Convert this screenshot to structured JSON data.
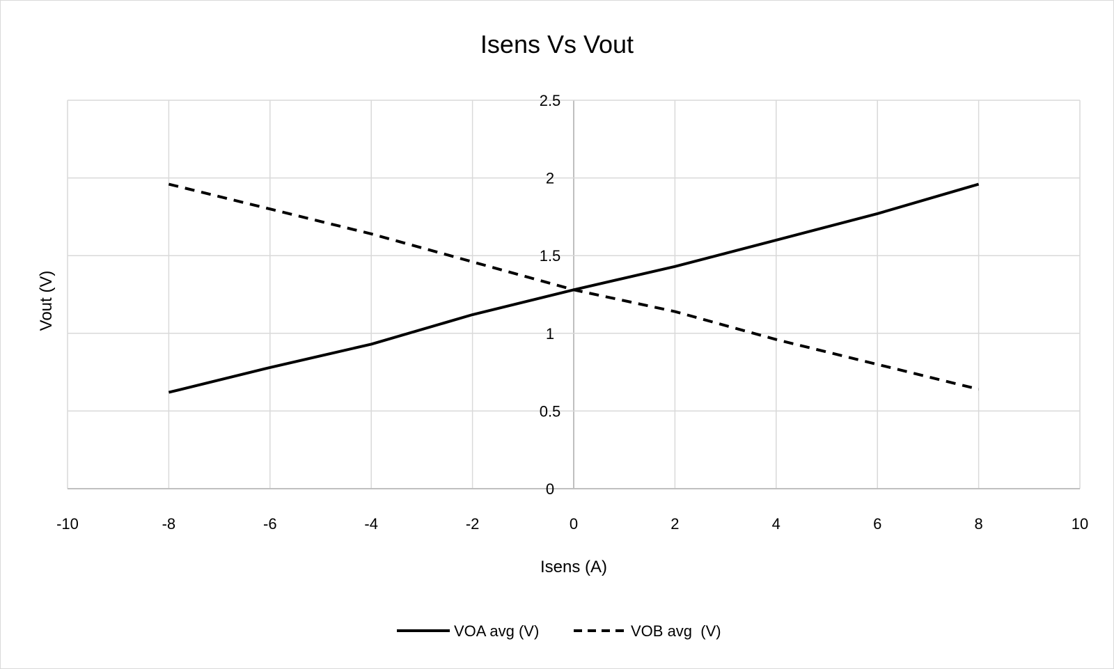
{
  "chart_data": {
    "type": "line",
    "title": "Isens Vs Vout",
    "xlabel": "Isens (A)",
    "ylabel": "Vout (V)",
    "xlim": [
      -10,
      10
    ],
    "ylim": [
      0,
      2.5
    ],
    "xticks": [
      -10,
      -8,
      -6,
      -4,
      -2,
      0,
      2,
      4,
      6,
      8,
      10
    ],
    "yticks": [
      0,
      0.5,
      1,
      1.5,
      2,
      2.5
    ],
    "grid": true,
    "legend": "bottom",
    "x": [
      -8,
      -6,
      -4,
      -2,
      0,
      2,
      4,
      6,
      8
    ],
    "series": [
      {
        "name": "VOA avg (V)",
        "style": "solid",
        "color": "#000000",
        "values": [
          0.62,
          0.78,
          0.93,
          1.12,
          1.28,
          1.43,
          1.6,
          1.77,
          1.96
        ]
      },
      {
        "name": "VOB avg  (V)",
        "style": "dashed",
        "color": "#000000",
        "values": [
          1.96,
          1.8,
          1.64,
          1.46,
          1.28,
          1.14,
          0.96,
          0.8,
          0.64
        ]
      }
    ]
  }
}
